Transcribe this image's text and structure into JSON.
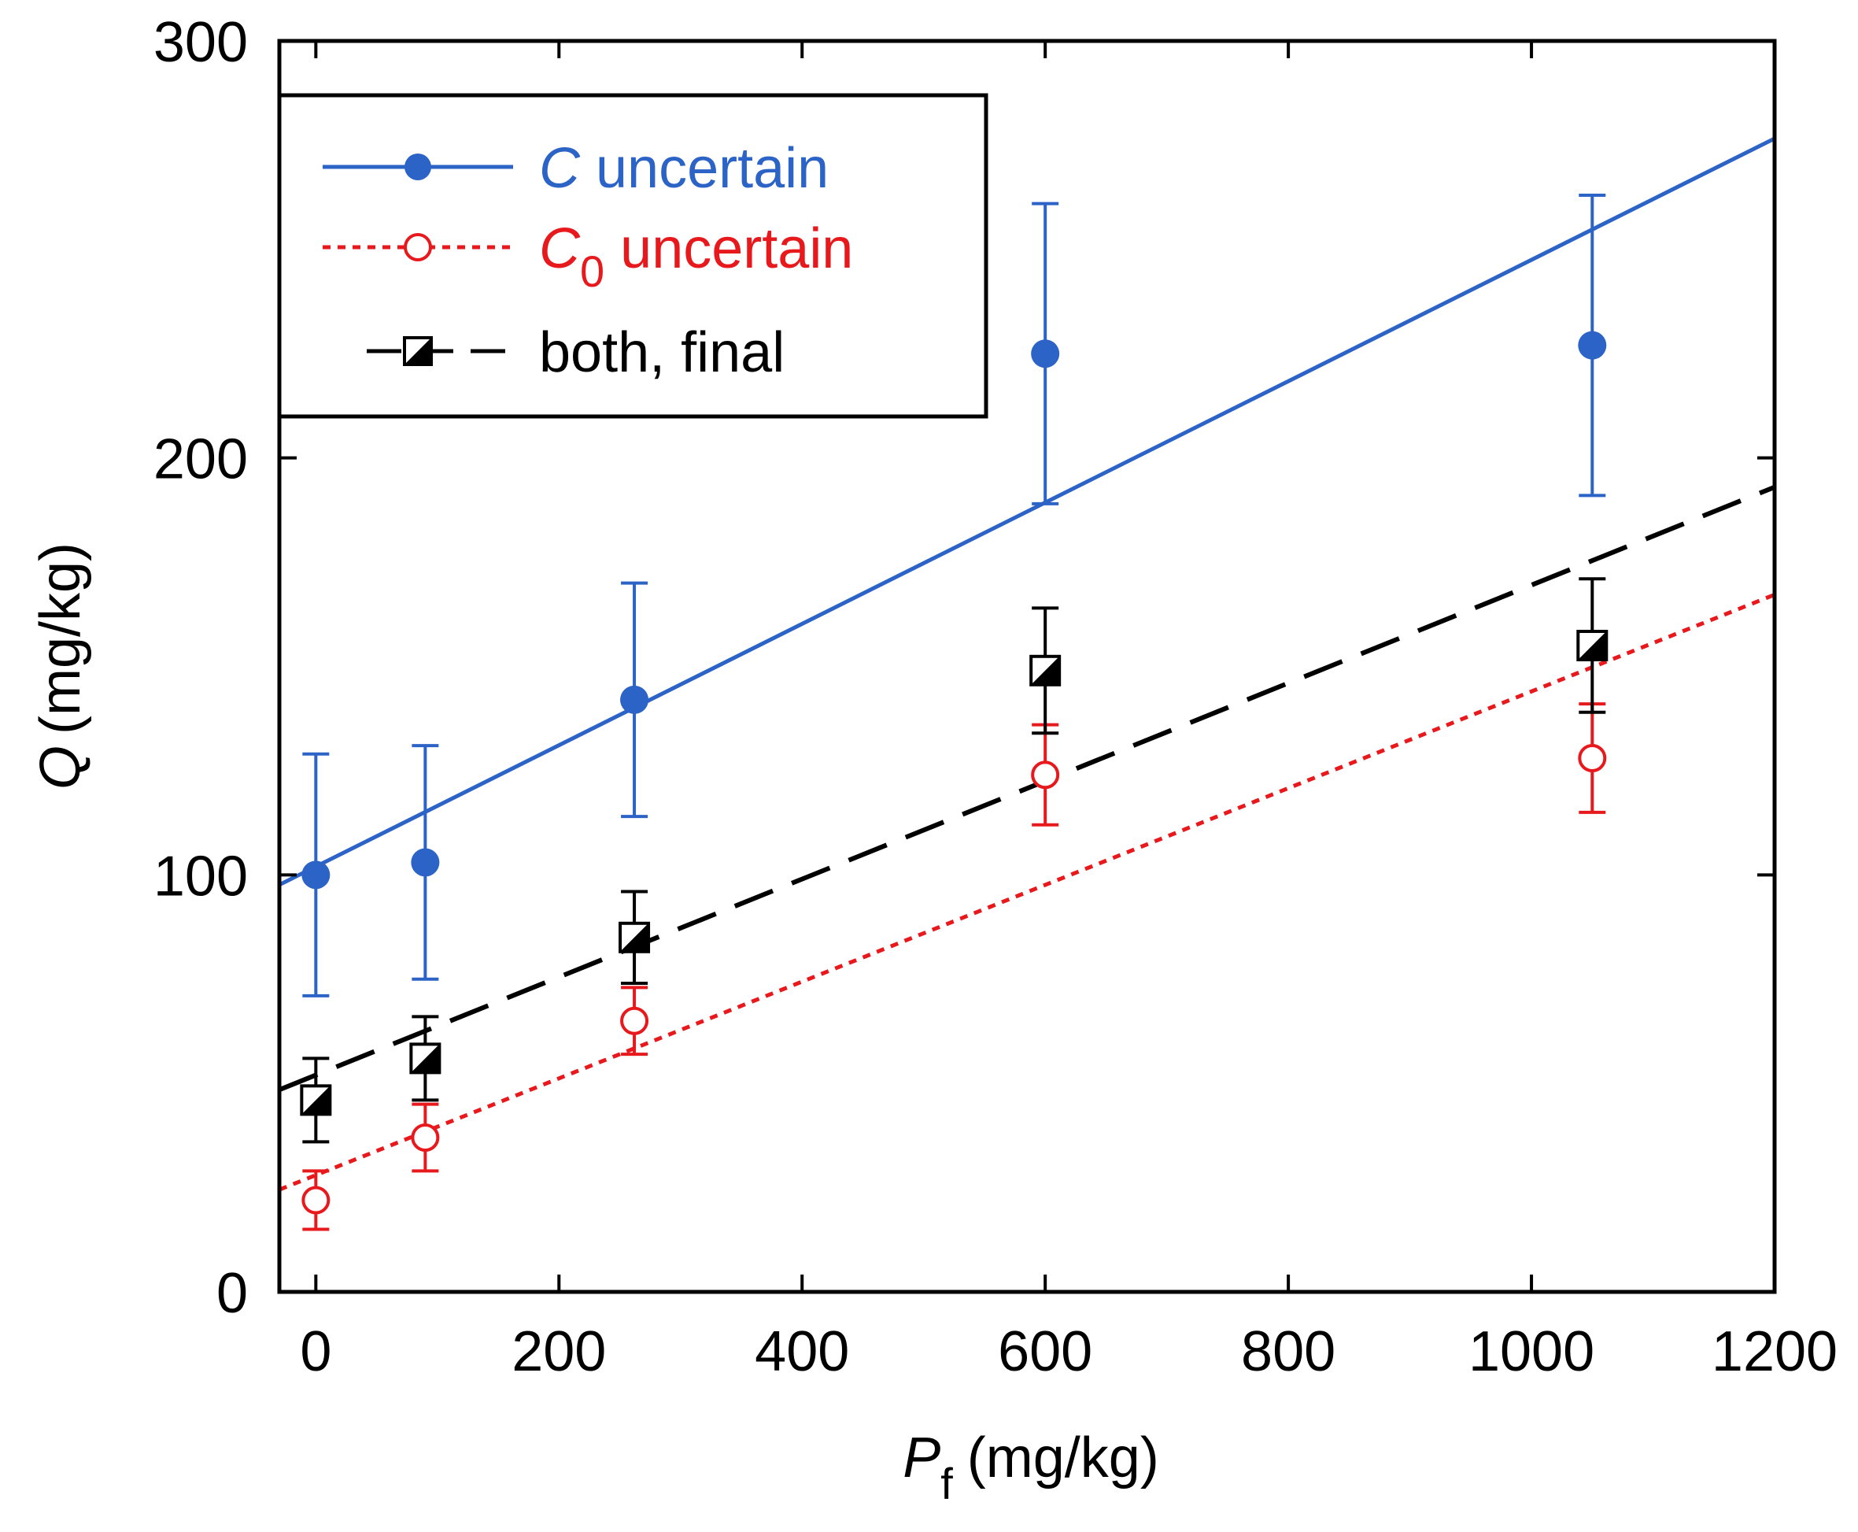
{
  "colors": {
    "c_uncertain": "#2b63c6",
    "c0_uncertain": "#e8191c",
    "both_final": "#000000",
    "axes": "#000000",
    "background": "#ffffff"
  },
  "chart_data": {
    "type": "scatter",
    "title": "",
    "xlabel": {
      "symbol": "P",
      "subscript": "f",
      "unit": "(mg/kg)"
    },
    "ylabel": {
      "symbol": "Q",
      "unit": "(mg/kg)"
    },
    "xlim": [
      -30,
      1200
    ],
    "ylim": [
      0,
      300
    ],
    "xticks": [
      0,
      200,
      400,
      600,
      800,
      1000,
      1200
    ],
    "yticks": [
      0,
      100,
      200,
      300
    ],
    "xtick_labels": [
      "0",
      "200",
      "400",
      "600",
      "800",
      "1000",
      "1200"
    ],
    "ytick_labels": [
      "0",
      "100",
      "200",
      "300"
    ],
    "grid": false,
    "legend_position": "top-left",
    "series": [
      {
        "id": "c_uncertain",
        "name": "C uncertain",
        "legend_symbol": "C",
        "legend_subscript": "",
        "legend_rest": " uncertain",
        "marker": "filled-circle",
        "line_style": "solid",
        "x": [
          0,
          90,
          262,
          600,
          1050
        ],
        "y": [
          100,
          103,
          142,
          225,
          227
        ],
        "err": [
          29,
          28,
          28,
          36,
          36
        ],
        "fit": {
          "slope": 0.1455,
          "intercept": 102
        }
      },
      {
        "id": "c0_uncertain",
        "name": "C0 uncertain",
        "legend_symbol": "C",
        "legend_subscript": "0",
        "legend_rest": " uncertain",
        "marker": "open-circle",
        "line_style": "dotted",
        "x": [
          0,
          90,
          262,
          600,
          1050
        ],
        "y": [
          22,
          37,
          65,
          124,
          128
        ],
        "err": [
          7,
          8,
          8,
          12,
          13
        ],
        "fit": {
          "slope": 0.116,
          "intercept": 28
        }
      },
      {
        "id": "both_final",
        "name": "both, final",
        "legend_symbol": "",
        "legend_subscript": "",
        "legend_rest": "both, final",
        "marker": "half-filled-square",
        "line_style": "dashed",
        "x": [
          0,
          90,
          262,
          600,
          1050
        ],
        "y": [
          46,
          56,
          85,
          149,
          155
        ],
        "err": [
          10,
          10,
          11,
          15,
          16
        ],
        "fit": {
          "slope": 0.1175,
          "intercept": 52
        }
      }
    ]
  }
}
